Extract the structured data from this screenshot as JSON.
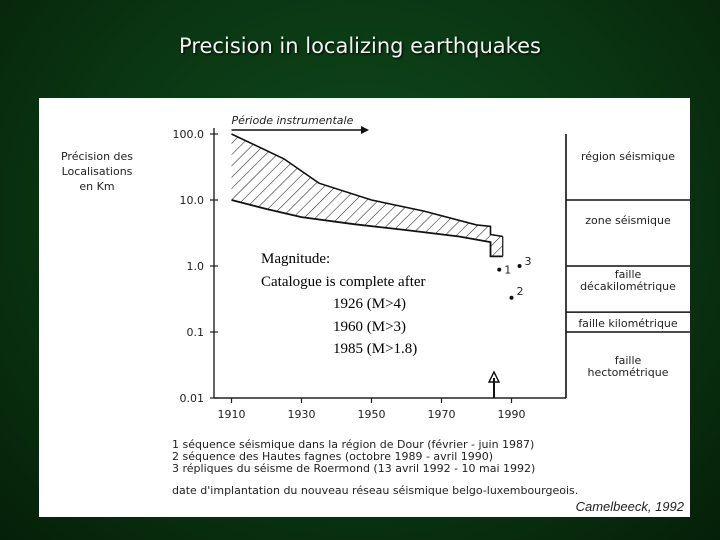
{
  "slide": {
    "title": "Precision in localizing earthquakes",
    "credit": "Camelbeeck, 1992"
  },
  "chart_data": {
    "type": "area",
    "ylabel": [
      "Précision des",
      "Localisations",
      "en Km"
    ],
    "y_scale": "log",
    "ylim": [
      0.01,
      100.0
    ],
    "y_ticks": [
      "100.0",
      "10.0",
      "1.0",
      "0.1",
      "0.01"
    ],
    "y_tick_values": [
      100,
      10,
      1,
      0.1,
      0.01
    ],
    "xlim": [
      1905,
      1995
    ],
    "x_ticks": [
      1910,
      1930,
      1950,
      1970,
      1990
    ],
    "period_label": "Période instrumentale",
    "period_start": 1910,
    "series": [
      {
        "role": "upper-bound",
        "x": [
          1910,
          1925,
          1935,
          1950,
          1965,
          1980,
          1984,
          1984,
          1987.5
        ],
        "y": [
          100,
          42,
          18,
          10,
          6.8,
          4.2,
          4.0,
          3.0,
          2.8
        ]
      },
      {
        "role": "lower-bound",
        "x": [
          1910,
          1920,
          1930,
          1945,
          1960,
          1975,
          1984,
          1984,
          1987.5
        ],
        "y": [
          10,
          7.3,
          5.5,
          4.3,
          3.5,
          2.8,
          2.3,
          1.4,
          1.4
        ]
      }
    ],
    "point_markers": [
      {
        "label": "1",
        "x": 1986.5,
        "y": 0.88
      },
      {
        "label": "2",
        "x": 1990,
        "y": 0.33
      },
      {
        "label": "3",
        "x": 1992.3,
        "y": 1.0
      }
    ],
    "network_arrow_year": 1985,
    "zones": [
      {
        "label": "région séismique",
        "y_min": 10,
        "y_max": 100
      },
      {
        "label": "zone séismique",
        "y_min": 1,
        "y_max": 10
      },
      {
        "label": "faille décakilométrique",
        "y_min": 0.2,
        "y_max": 1.0
      },
      {
        "label": "faille kilométrique",
        "y_min": 0.1,
        "y_max": 0.2
      },
      {
        "label": "faille hectométrique",
        "y_min": 0.01,
        "y_max": 0.1
      }
    ],
    "zone_labels": [
      [
        "région séismique"
      ],
      [
        "zone séismique"
      ],
      [
        "faille",
        "décakilométrique"
      ],
      [
        "faille kilométrique"
      ],
      [
        "faille",
        "hectométrique"
      ]
    ],
    "footnotes": [
      "1  séquence séismique dans la région de Dour (février - juin 1987)",
      "2  séquence des Hautes fagnes (octobre 1989 - avril 1990)",
      "3  répliques du séisme de Roermond (13 avril 1992 - 10 mai 1992)",
      "date d'implantation du nouveau réseau séismique belgo-luxembourgeois."
    ]
  },
  "overlay": {
    "heading": "Magnitude:",
    "line1": "Catalogue is complete after",
    "items": [
      "1926 (M>4)",
      "1960 (M>3)",
      "1985 (M>1.8)"
    ]
  }
}
